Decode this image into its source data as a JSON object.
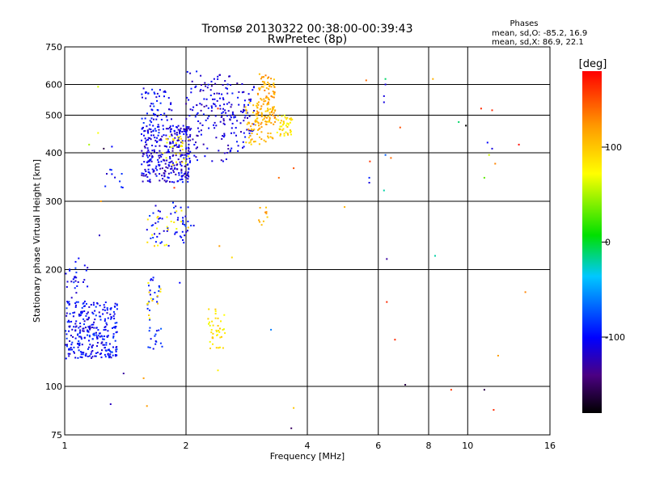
{
  "chart_data": {
    "type": "scatter",
    "title": "Tromsø 20130322 00:38:00-00:39:43",
    "subtitle": "RwPretec (8p)",
    "xlabel": "Frequency [MHz]",
    "ylabel": "Stationary phase Virtual Height [km]",
    "x_scale": "log",
    "y_scale": "log",
    "xlim": [
      1,
      16
    ],
    "ylim": [
      75,
      750
    ],
    "x_ticks": [
      1,
      2,
      4,
      6,
      8,
      10,
      16
    ],
    "y_ticks": [
      75,
      100,
      200,
      300,
      400,
      500,
      600,
      750
    ],
    "grid": true,
    "info": {
      "heading": "Phases",
      "line1": "mean, sd,O: -85.2, 16.9",
      "line2": "mean, sd,X: 86.9, 22.1"
    },
    "colorbar": {
      "label": "[deg]",
      "range": [
        -180,
        180
      ],
      "ticks": [
        100,
        0,
        -100
      ]
    },
    "clusters": [
      {
        "x": [
          1.0,
          1.35
        ],
        "y": [
          118,
          165
        ],
        "phase": -100,
        "count": 260
      },
      {
        "x": [
          1.0,
          1.15
        ],
        "y": [
          160,
          215
        ],
        "phase": -100,
        "count": 35
      },
      {
        "x": [
          1.15,
          1.35
        ],
        "y": [
          118,
          140
        ],
        "phase": -95,
        "count": 40
      },
      {
        "x": [
          1.25,
          1.4
        ],
        "y": [
          325,
          365
        ],
        "phase": -100,
        "count": 10
      },
      {
        "x": [
          1.55,
          2.05
        ],
        "y": [
          335,
          470
        ],
        "phase": -110,
        "count": 300
      },
      {
        "x": [
          1.55,
          1.85
        ],
        "y": [
          450,
          590
        ],
        "phase": -100,
        "count": 70
      },
      {
        "x": [
          1.6,
          2.1
        ],
        "y": [
          230,
          300
        ],
        "phase": -100,
        "count": 55
      },
      {
        "x": [
          1.6,
          2.05
        ],
        "y": [
          230,
          290
        ],
        "phase": 85,
        "count": 20
      },
      {
        "x": [
          1.6,
          1.75
        ],
        "y": [
          125,
          200
        ],
        "phase": -90,
        "count": 35
      },
      {
        "x": [
          1.6,
          1.75
        ],
        "y": [
          145,
          185
        ],
        "phase": 85,
        "count": 12
      },
      {
        "x": [
          1.75,
          2.05
        ],
        "y": [
          370,
          450
        ],
        "phase": 80,
        "count": 30
      },
      {
        "x": [
          2.0,
          2.6
        ],
        "y": [
          380,
          650
        ],
        "phase": -110,
        "count": 160
      },
      {
        "x": [
          2.6,
          2.95
        ],
        "y": [
          400,
          610
        ],
        "phase": -110,
        "count": 60
      },
      {
        "x": [
          2.8,
          3.3
        ],
        "y": [
          420,
          540
        ],
        "phase": 110,
        "count": 80
      },
      {
        "x": [
          3.0,
          3.35
        ],
        "y": [
          470,
          640
        ],
        "phase": 115,
        "count": 100
      },
      {
        "x": [
          3.35,
          3.7
        ],
        "y": [
          440,
          500
        ],
        "phase": 85,
        "count": 45
      },
      {
        "x": [
          3.0,
          3.2
        ],
        "y": [
          260,
          290
        ],
        "phase": 110,
        "count": 10
      },
      {
        "x": [
          2.25,
          2.5
        ],
        "y": [
          125,
          160
        ],
        "phase": 85,
        "count": 40
      }
    ],
    "points": [
      {
        "x": 1.21,
        "y": 592,
        "phase": 60
      },
      {
        "x": 1.21,
        "y": 450,
        "phase": 70
      },
      {
        "x": 1.15,
        "y": 420,
        "phase": 50
      },
      {
        "x": 1.25,
        "y": 410,
        "phase": -160
      },
      {
        "x": 1.23,
        "y": 300,
        "phase": 120
      },
      {
        "x": 1.31,
        "y": 415,
        "phase": -100
      },
      {
        "x": 1.22,
        "y": 245,
        "phase": -120
      },
      {
        "x": 1.3,
        "y": 90,
        "phase": -120
      },
      {
        "x": 1.4,
        "y": 108,
        "phase": -130
      },
      {
        "x": 1.57,
        "y": 105,
        "phase": 120
      },
      {
        "x": 1.6,
        "y": 89,
        "phase": 120
      },
      {
        "x": 1.87,
        "y": 325,
        "phase": 160
      },
      {
        "x": 1.93,
        "y": 185,
        "phase": -100
      },
      {
        "x": 2.35,
        "y": 620,
        "phase": -110
      },
      {
        "x": 2.4,
        "y": 520,
        "phase": 160
      },
      {
        "x": 2.42,
        "y": 230,
        "phase": 120
      },
      {
        "x": 2.6,
        "y": 215,
        "phase": 90
      },
      {
        "x": 2.4,
        "y": 110,
        "phase": 80
      },
      {
        "x": 3.25,
        "y": 140,
        "phase": -60
      },
      {
        "x": 3.4,
        "y": 345,
        "phase": 140
      },
      {
        "x": 3.7,
        "y": 365,
        "phase": 150
      },
      {
        "x": 3.7,
        "y": 88,
        "phase": 100
      },
      {
        "x": 3.65,
        "y": 78,
        "phase": -150
      },
      {
        "x": 4.95,
        "y": 290,
        "phase": 110
      },
      {
        "x": 5.6,
        "y": 615,
        "phase": 140
      },
      {
        "x": 5.72,
        "y": 380,
        "phase": 160
      },
      {
        "x": 5.7,
        "y": 345,
        "phase": -90
      },
      {
        "x": 5.7,
        "y": 335,
        "phase": -110
      },
      {
        "x": 6.25,
        "y": 620,
        "phase": -10
      },
      {
        "x": 6.25,
        "y": 600,
        "phase": -110
      },
      {
        "x": 6.2,
        "y": 560,
        "phase": -110
      },
      {
        "x": 6.2,
        "y": 540,
        "phase": -110
      },
      {
        "x": 6.25,
        "y": 395,
        "phase": -70
      },
      {
        "x": 6.45,
        "y": 388,
        "phase": 140
      },
      {
        "x": 6.2,
        "y": 320,
        "phase": -20
      },
      {
        "x": 6.3,
        "y": 213,
        "phase": -130
      },
      {
        "x": 6.3,
        "y": 165,
        "phase": 165
      },
      {
        "x": 6.6,
        "y": 132,
        "phase": 165
      },
      {
        "x": 6.8,
        "y": 465,
        "phase": 150
      },
      {
        "x": 7.0,
        "y": 101,
        "phase": -160
      },
      {
        "x": 8.2,
        "y": 620,
        "phase": 110
      },
      {
        "x": 8.3,
        "y": 217,
        "phase": -20
      },
      {
        "x": 9.1,
        "y": 98,
        "phase": 160
      },
      {
        "x": 9.5,
        "y": 480,
        "phase": -10
      },
      {
        "x": 9.9,
        "y": 470,
        "phase": -180
      },
      {
        "x": 10.8,
        "y": 520,
        "phase": 165
      },
      {
        "x": 11.5,
        "y": 515,
        "phase": 165
      },
      {
        "x": 11.2,
        "y": 425,
        "phase": -100
      },
      {
        "x": 11.5,
        "y": 410,
        "phase": -110
      },
      {
        "x": 11.7,
        "y": 375,
        "phase": 130
      },
      {
        "x": 11.3,
        "y": 395,
        "phase": 60
      },
      {
        "x": 11.0,
        "y": 345,
        "phase": 30
      },
      {
        "x": 11.0,
        "y": 98,
        "phase": -160
      },
      {
        "x": 11.6,
        "y": 87,
        "phase": 165
      },
      {
        "x": 11.9,
        "y": 120,
        "phase": 120
      },
      {
        "x": 13.4,
        "y": 420,
        "phase": 175
      },
      {
        "x": 13.9,
        "y": 175,
        "phase": 130
      }
    ]
  }
}
